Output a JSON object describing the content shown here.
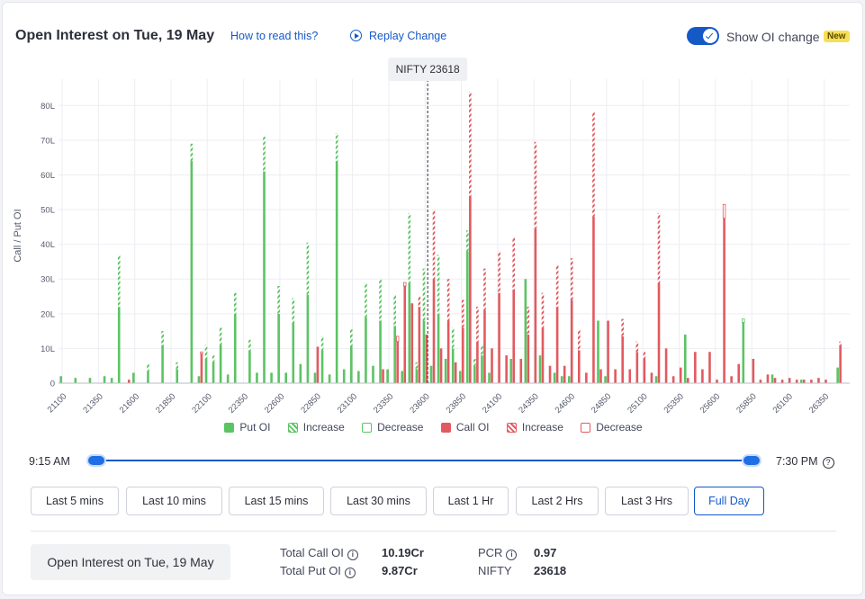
{
  "header": {
    "title": "Open Interest on Tue, 19 May",
    "how_to_read": "How to read this?",
    "replay": "Replay Change",
    "toggle_label": "Show OI change",
    "badge": "New"
  },
  "legend": {
    "put": "Put OI",
    "put_increase": "Increase",
    "put_decrease": "Decrease",
    "call": "Call OI",
    "call_increase": "Increase",
    "call_decrease": "Decrease"
  },
  "time_range": {
    "start": "9:15 AM",
    "end": "7:30 PM",
    "help": "?"
  },
  "buttons": {
    "last5": "Last 5 mins",
    "last10": "Last 10 mins",
    "last15": "Last 15 mins",
    "last30": "Last 30 mins",
    "last1h": "Last 1 Hr",
    "last2h": "Last 2 Hrs",
    "last3h": "Last 3 Hrs",
    "full": "Full Day"
  },
  "summary": {
    "box": "Open Interest on Tue, 19 May",
    "total_call_label": "Total Call OI",
    "total_call_value": "10.19Cr",
    "total_put_label": "Total Put OI",
    "total_put_value": "9.87Cr",
    "pcr_label": "PCR",
    "pcr_value": "0.97",
    "nifty_label": "NIFTY",
    "nifty_value": "23618",
    "info": "i"
  },
  "chart_data": {
    "type": "bar",
    "ylabel": "Call / Put OI",
    "ylim": [
      0,
      85
    ],
    "yticks": [
      0,
      10,
      20,
      30,
      40,
      50,
      60,
      70,
      80
    ],
    "ytick_labels": [
      "0",
      "10L",
      "20L",
      "30L",
      "40L",
      "50L",
      "60L",
      "70L",
      "80L"
    ],
    "x_start": 21100,
    "x_end": 26500,
    "x_step": 50,
    "xtick_labels": [
      21100,
      21350,
      21600,
      21850,
      22100,
      22350,
      22600,
      22850,
      23100,
      23350,
      23600,
      23850,
      24100,
      24350,
      24600,
      24850,
      25100,
      25350,
      25600,
      25850,
      26100,
      26350
    ],
    "spot_label": "NIFTY 23618",
    "spot": 23618,
    "colors": {
      "put": "#5bc463",
      "call": "#e25a5f"
    },
    "put_bars": [
      {
        "x": 21100,
        "v": 2
      },
      {
        "x": 21200,
        "v": 1.5
      },
      {
        "x": 21300,
        "v": 1.5
      },
      {
        "x": 21400,
        "v": 2
      },
      {
        "x": 21450,
        "v": 1.5
      },
      {
        "x": 21500,
        "v": 37,
        "inc": 15
      },
      {
        "x": 21600,
        "v": 3
      },
      {
        "x": 21700,
        "v": 5.5,
        "inc": 2
      },
      {
        "x": 21800,
        "v": 15,
        "inc": 4
      },
      {
        "x": 21900,
        "v": 6,
        "inc": 2
      },
      {
        "x": 22000,
        "v": 69,
        "inc": 5
      },
      {
        "x": 22050,
        "v": 2
      },
      {
        "x": 22100,
        "v": 11,
        "inc": 4
      },
      {
        "x": 22150,
        "v": 8,
        "inc": 2
      },
      {
        "x": 22200,
        "v": 16,
        "inc": 5
      },
      {
        "x": 22250,
        "v": 2.5
      },
      {
        "x": 22300,
        "v": 26,
        "inc": 6
      },
      {
        "x": 22400,
        "v": 12.5,
        "inc": 3
      },
      {
        "x": 22450,
        "v": 3
      },
      {
        "x": 22500,
        "v": 71,
        "inc": 10
      },
      {
        "x": 22550,
        "v": 3
      },
      {
        "x": 22600,
        "v": 28,
        "inc": 8
      },
      {
        "x": 22650,
        "v": 3
      },
      {
        "x": 22700,
        "v": 24.5,
        "inc": 7
      },
      {
        "x": 22750,
        "v": 5.5
      },
      {
        "x": 22800,
        "v": 40.5,
        "inc": 15
      },
      {
        "x": 22850,
        "v": 3
      },
      {
        "x": 22900,
        "v": 13.5,
        "inc": 4
      },
      {
        "x": 22950,
        "v": 2.5
      },
      {
        "x": 23000,
        "v": 72,
        "inc": 8
      },
      {
        "x": 23050,
        "v": 4
      },
      {
        "x": 23100,
        "v": 15.5,
        "inc": 5
      },
      {
        "x": 23150,
        "v": 3.5
      },
      {
        "x": 23200,
        "v": 29,
        "inc": 10
      },
      {
        "x": 23250,
        "v": 5
      },
      {
        "x": 23300,
        "v": 30,
        "inc": 12
      },
      {
        "x": 23350,
        "v": 4
      },
      {
        "x": 23400,
        "v": 25.5,
        "inc": 9
      },
      {
        "x": 23450,
        "v": 3.5
      },
      {
        "x": 23500,
        "v": 49,
        "inc": 20
      },
      {
        "x": 23550,
        "v": 6,
        "inc": 2
      },
      {
        "x": 23600,
        "v": 33,
        "inc": 15
      },
      {
        "x": 23650,
        "v": 5
      },
      {
        "x": 23700,
        "v": 37,
        "inc": 17
      },
      {
        "x": 23750,
        "v": 7
      },
      {
        "x": 23800,
        "v": 16,
        "inc": 6
      },
      {
        "x": 23850,
        "v": 3.5
      },
      {
        "x": 23900,
        "v": 44,
        "inc": 6
      },
      {
        "x": 23950,
        "v": 7,
        "inc": 2
      },
      {
        "x": 24000,
        "v": 11,
        "inc": 3
      },
      {
        "x": 24050,
        "v": 3
      },
      {
        "x": 24200,
        "v": 7
      },
      {
        "x": 24300,
        "v": 30
      },
      {
        "x": 24400,
        "v": 8
      },
      {
        "x": 24500,
        "v": 3
      },
      {
        "x": 24550,
        "v": 2
      },
      {
        "x": 24600,
        "v": 2
      },
      {
        "x": 24800,
        "v": 18
      },
      {
        "x": 24850,
        "v": 2
      },
      {
        "x": 25200,
        "v": 2
      },
      {
        "x": 25400,
        "v": 14
      },
      {
        "x": 25800,
        "v": 17.5,
        "dec": 1
      },
      {
        "x": 26000,
        "v": 2.5
      },
      {
        "x": 26200,
        "v": 1
      },
      {
        "x": 26450,
        "v": 4.5
      }
    ],
    "call_bars": [
      {
        "x": 21550,
        "v": 1
      },
      {
        "x": 22050,
        "v": 8.5,
        "dec": 0.5
      },
      {
        "x": 22850,
        "v": 10.5
      },
      {
        "x": 23300,
        "v": 4
      },
      {
        "x": 23400,
        "v": 12,
        "dec": 1.5
      },
      {
        "x": 23450,
        "v": 28,
        "dec": 1
      },
      {
        "x": 23500,
        "v": 23
      },
      {
        "x": 23550,
        "v": 25,
        "inc": 3
      },
      {
        "x": 23600,
        "v": 14
      },
      {
        "x": 23650,
        "v": 50,
        "inc": 20
      },
      {
        "x": 23700,
        "v": 10
      },
      {
        "x": 23750,
        "v": 30,
        "inc": 12
      },
      {
        "x": 23800,
        "v": 6
      },
      {
        "x": 23850,
        "v": 24,
        "inc": 8
      },
      {
        "x": 23900,
        "v": 84,
        "inc": 30
      },
      {
        "x": 23950,
        "v": 22,
        "inc": 10
      },
      {
        "x": 24000,
        "v": 33,
        "inc": 12
      },
      {
        "x": 24050,
        "v": 10
      },
      {
        "x": 24100,
        "v": 38,
        "inc": 12
      },
      {
        "x": 24150,
        "v": 8
      },
      {
        "x": 24200,
        "v": 42,
        "inc": 15
      },
      {
        "x": 24250,
        "v": 7
      },
      {
        "x": 24300,
        "v": 22,
        "inc": 8
      },
      {
        "x": 24350,
        "v": 69.5,
        "inc": 25
      },
      {
        "x": 24400,
        "v": 26,
        "inc": 10
      },
      {
        "x": 24450,
        "v": 5
      },
      {
        "x": 24500,
        "v": 34,
        "inc": 12
      },
      {
        "x": 24550,
        "v": 5
      },
      {
        "x": 24600,
        "v": 36,
        "inc": 12
      },
      {
        "x": 24650,
        "v": 15.5,
        "inc": 6
      },
      {
        "x": 24700,
        "v": 3
      },
      {
        "x": 24750,
        "v": 78,
        "inc": 30
      },
      {
        "x": 24800,
        "v": 4
      },
      {
        "x": 24850,
        "v": 18
      },
      {
        "x": 24900,
        "v": 4
      },
      {
        "x": 24950,
        "v": 18.5,
        "inc": 5
      },
      {
        "x": 25000,
        "v": 4
      },
      {
        "x": 25050,
        "v": 12,
        "inc": 3
      },
      {
        "x": 25100,
        "v": 9,
        "inc": 2
      },
      {
        "x": 25150,
        "v": 3
      },
      {
        "x": 25200,
        "v": 49,
        "inc": 20
      },
      {
        "x": 25250,
        "v": 10
      },
      {
        "x": 25300,
        "v": 2
      },
      {
        "x": 25350,
        "v": 4.5
      },
      {
        "x": 25400,
        "v": 1.5
      },
      {
        "x": 25450,
        "v": 9
      },
      {
        "x": 25500,
        "v": 4
      },
      {
        "x": 25550,
        "v": 9
      },
      {
        "x": 25600,
        "v": 1
      },
      {
        "x": 25650,
        "v": 47.5,
        "dec": 4
      },
      {
        "x": 25700,
        "v": 2
      },
      {
        "x": 25750,
        "v": 5.5
      },
      {
        "x": 25850,
        "v": 7
      },
      {
        "x": 25900,
        "v": 1
      },
      {
        "x": 25950,
        "v": 2.5
      },
      {
        "x": 26000,
        "v": 1.5
      },
      {
        "x": 26050,
        "v": 1
      },
      {
        "x": 26100,
        "v": 1.5
      },
      {
        "x": 26150,
        "v": 1
      },
      {
        "x": 26200,
        "v": 1
      },
      {
        "x": 26250,
        "v": 1
      },
      {
        "x": 26300,
        "v": 1.5
      },
      {
        "x": 26350,
        "v": 1
      },
      {
        "x": 26450,
        "v": 12,
        "inc": 1
      }
    ]
  }
}
